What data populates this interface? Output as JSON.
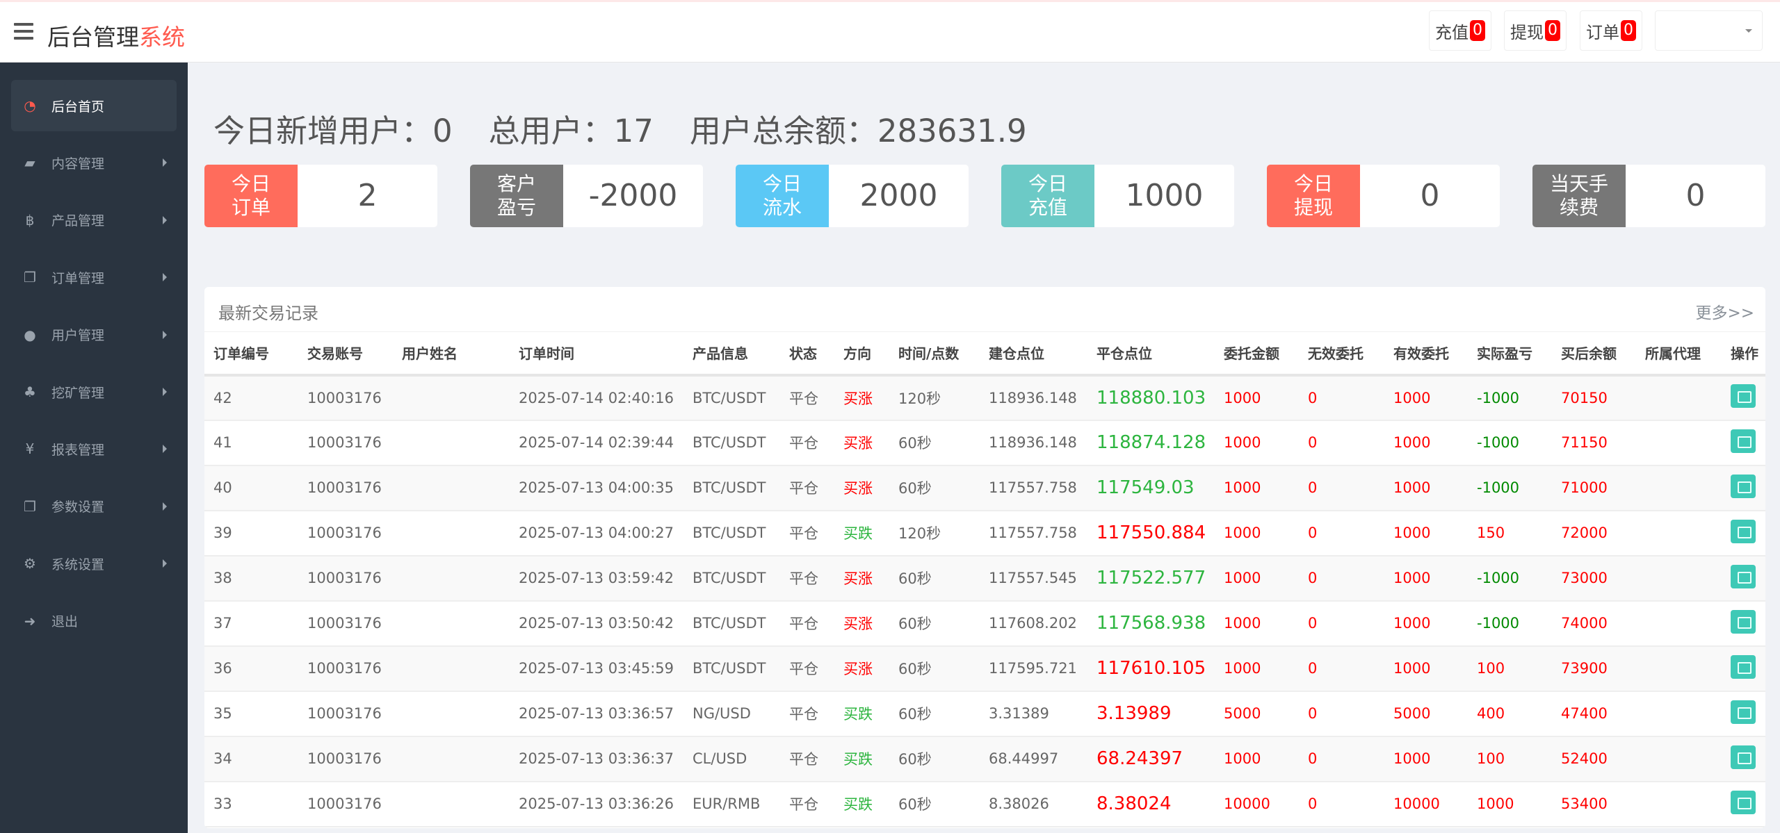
{
  "header": {
    "title_main": "后台管理",
    "title_accent": "系统",
    "buttons": [
      {
        "label": "充值",
        "count": "0"
      },
      {
        "label": "提现",
        "count": "0"
      },
      {
        "label": "订单",
        "count": "0"
      }
    ]
  },
  "sidebar": {
    "items": [
      {
        "label": "后台首页",
        "icon": "dashboard-icon",
        "glyph": "◔",
        "active": true
      },
      {
        "label": "内容管理",
        "icon": "book-icon",
        "glyph": "▰"
      },
      {
        "label": "产品管理",
        "icon": "bitcoin-icon",
        "glyph": "฿"
      },
      {
        "label": "订单管理",
        "icon": "files-icon",
        "glyph": "❐"
      },
      {
        "label": "用户管理",
        "icon": "user-icon",
        "glyph": "●"
      },
      {
        "label": "挖矿管理",
        "icon": "users-icon",
        "glyph": "♣"
      },
      {
        "label": "报表管理",
        "icon": "yen-icon",
        "glyph": "¥"
      },
      {
        "label": "参数设置",
        "icon": "files-icon",
        "glyph": "❐"
      },
      {
        "label": "系统设置",
        "icon": "gears-icon",
        "glyph": "⚙"
      },
      {
        "label": "退出",
        "icon": "sign-out-icon",
        "glyph": "➜"
      }
    ]
  },
  "stats": {
    "new_users": "今日新增用户：0",
    "total_users": "总用户：17",
    "total_balance": "用户总余额：283631.9"
  },
  "cards": [
    {
      "label": "今日订单",
      "value": "2",
      "color": "#ff6c5c"
    },
    {
      "label": "客户盈亏",
      "value": "-2000",
      "color": "#777777"
    },
    {
      "label": "今日流水",
      "value": "2000",
      "color": "#5bc8f5"
    },
    {
      "label": "今日充值",
      "value": "1000",
      "color": "#6ccac6"
    },
    {
      "label": "今日提现",
      "value": "0",
      "color": "#ff6c5c"
    },
    {
      "label": "当天手续费",
      "value": "0",
      "color": "#777777"
    }
  ],
  "trades": {
    "title": "最新交易记录",
    "more": "更多>>",
    "columns": [
      "订单编号",
      "交易账号",
      "用户姓名",
      "订单时间",
      "产品信息",
      "状态",
      "方向",
      "时间/点数",
      "建仓点位",
      "平仓点位",
      "委托金额",
      "无效委托",
      "有效委托",
      "实际盈亏",
      "买后余额",
      "所属代理",
      "操作"
    ],
    "rows": [
      [
        "42",
        "10003176",
        "",
        "2025-07-14 02:40:16",
        "BTC/USDT",
        "平仓",
        "买涨",
        "120秒",
        "118936.148",
        "118880.103",
        "1000",
        "0",
        "1000",
        "-1000",
        "70150",
        ""
      ],
      [
        "41",
        "10003176",
        "",
        "2025-07-14 02:39:44",
        "BTC/USDT",
        "平仓",
        "买涨",
        "60秒",
        "118936.148",
        "118874.128",
        "1000",
        "0",
        "1000",
        "-1000",
        "71150",
        ""
      ],
      [
        "40",
        "10003176",
        "",
        "2025-07-13 04:00:35",
        "BTC/USDT",
        "平仓",
        "买涨",
        "60秒",
        "117557.758",
        "117549.03",
        "1000",
        "0",
        "1000",
        "-1000",
        "71000",
        ""
      ],
      [
        "39",
        "10003176",
        "",
        "2025-07-13 04:00:27",
        "BTC/USDT",
        "平仓",
        "买跌",
        "120秒",
        "117557.758",
        "117550.884",
        "1000",
        "0",
        "1000",
        "150",
        "72000",
        ""
      ],
      [
        "38",
        "10003176",
        "",
        "2025-07-13 03:59:42",
        "BTC/USDT",
        "平仓",
        "买涨",
        "60秒",
        "117557.545",
        "117522.577",
        "1000",
        "0",
        "1000",
        "-1000",
        "73000",
        ""
      ],
      [
        "37",
        "10003176",
        "",
        "2025-07-13 03:50:42",
        "BTC/USDT",
        "平仓",
        "买涨",
        "60秒",
        "117608.202",
        "117568.938",
        "1000",
        "0",
        "1000",
        "-1000",
        "74000",
        ""
      ],
      [
        "36",
        "10003176",
        "",
        "2025-07-13 03:45:59",
        "BTC/USDT",
        "平仓",
        "买涨",
        "60秒",
        "117595.721",
        "117610.105",
        "1000",
        "0",
        "1000",
        "100",
        "73900",
        ""
      ],
      [
        "35",
        "10003176",
        "",
        "2025-07-13 03:36:57",
        "NG/USD",
        "平仓",
        "买跌",
        "60秒",
        "3.31389",
        "3.13989",
        "5000",
        "0",
        "5000",
        "400",
        "47400",
        ""
      ],
      [
        "34",
        "10003176",
        "",
        "2025-07-13 03:36:37",
        "CL/USD",
        "平仓",
        "买跌",
        "60秒",
        "68.44997",
        "68.24397",
        "1000",
        "0",
        "1000",
        "100",
        "52400",
        ""
      ],
      [
        "33",
        "10003176",
        "",
        "2025-07-13 03:36:26",
        "EUR/RMB",
        "平仓",
        "买跌",
        "60秒",
        "8.38026",
        "8.38024",
        "10000",
        "0",
        "10000",
        "1000",
        "53400",
        ""
      ]
    ]
  }
}
